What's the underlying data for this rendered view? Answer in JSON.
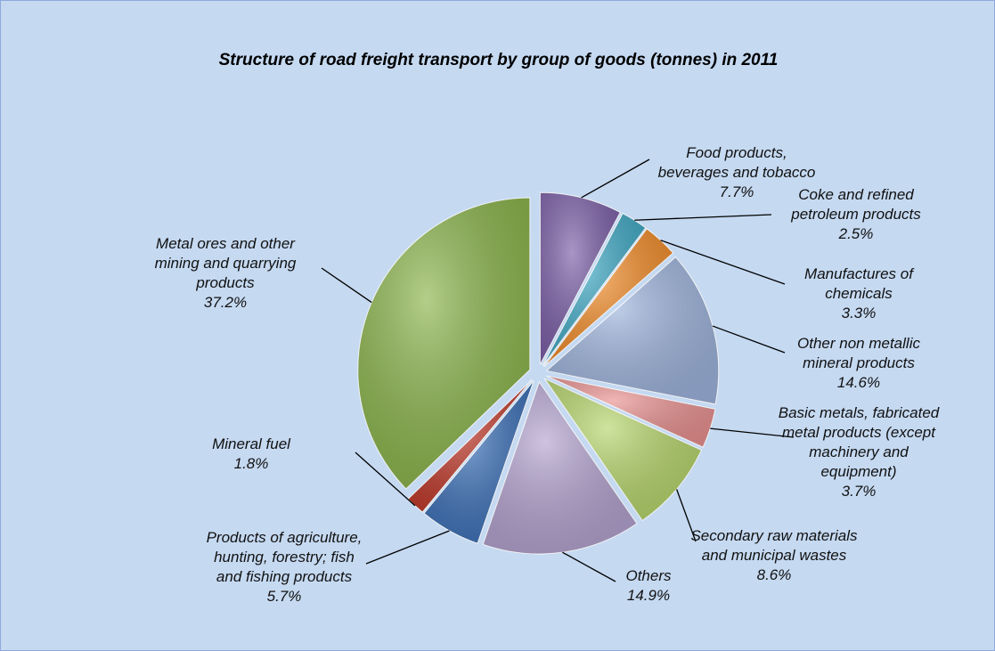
{
  "chart_data": {
    "type": "pie",
    "title": "Structure of road freight transport by group of goods (tonnes) in 2011",
    "categories": [
      "Food products, beverages and tobacco",
      "Coke and refined petroleum products",
      "Manufactures of chemicals",
      "Other non metallic mineral products",
      "Basic metals, fabricated metal products (except machinery and equipment)",
      "Secondary raw materials and municipal wastes",
      "Others",
      "Products of agriculture, hunting, forestry; fish and fishing products",
      "Mineral fuel",
      "Metal ores and other mining and quarrying products"
    ],
    "values": [
      7.7,
      2.5,
      3.3,
      14.6,
      3.7,
      8.6,
      14.9,
      5.7,
      1.8,
      37.2
    ],
    "value_labels": [
      "7.7%",
      "2.5%",
      "3.3%",
      "14.6%",
      "3.7%",
      "8.6%",
      "14.9%",
      "5.7%",
      "1.8%",
      "37.2%"
    ],
    "colors": [
      "#7b5ea7",
      "#3fa9c5",
      "#f28c28",
      "#9db3dc",
      "#e8908f",
      "#b5d56a",
      "#b3a2cf",
      "#3a6fb7",
      "#c0392b",
      "#8ab44a"
    ]
  }
}
